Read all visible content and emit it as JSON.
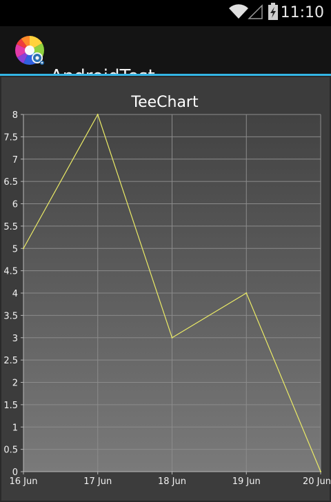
{
  "status_bar": {
    "time": "11:10",
    "icons": [
      "wifi-icon",
      "signal-icon",
      "battery-charging-icon"
    ]
  },
  "action_bar": {
    "app_icon": "color-wheel-gear-icon",
    "title": "AndroidTest"
  },
  "colors": {
    "accent": "#33b5e5",
    "series_line": "#ecec66",
    "panel_top": "#424242",
    "panel_bottom": "#7a7a7a"
  },
  "chart_data": {
    "type": "line",
    "title": "TeeChart",
    "x": [
      "16 Jun",
      "17 Jun",
      "18 Jun",
      "19 Jun",
      "20 Jun"
    ],
    "series": [
      {
        "values": [
          5,
          8,
          3,
          4,
          0
        ]
      }
    ],
    "ylim": [
      0,
      8
    ],
    "yticks": [
      "0",
      "0.5",
      "1",
      "1.5",
      "2",
      "2.5",
      "3",
      "3.5",
      "4",
      "4.5",
      "5",
      "5.5",
      "6",
      "6.5",
      "7",
      "7.5",
      "8"
    ],
    "grid": true,
    "legend": "none"
  }
}
